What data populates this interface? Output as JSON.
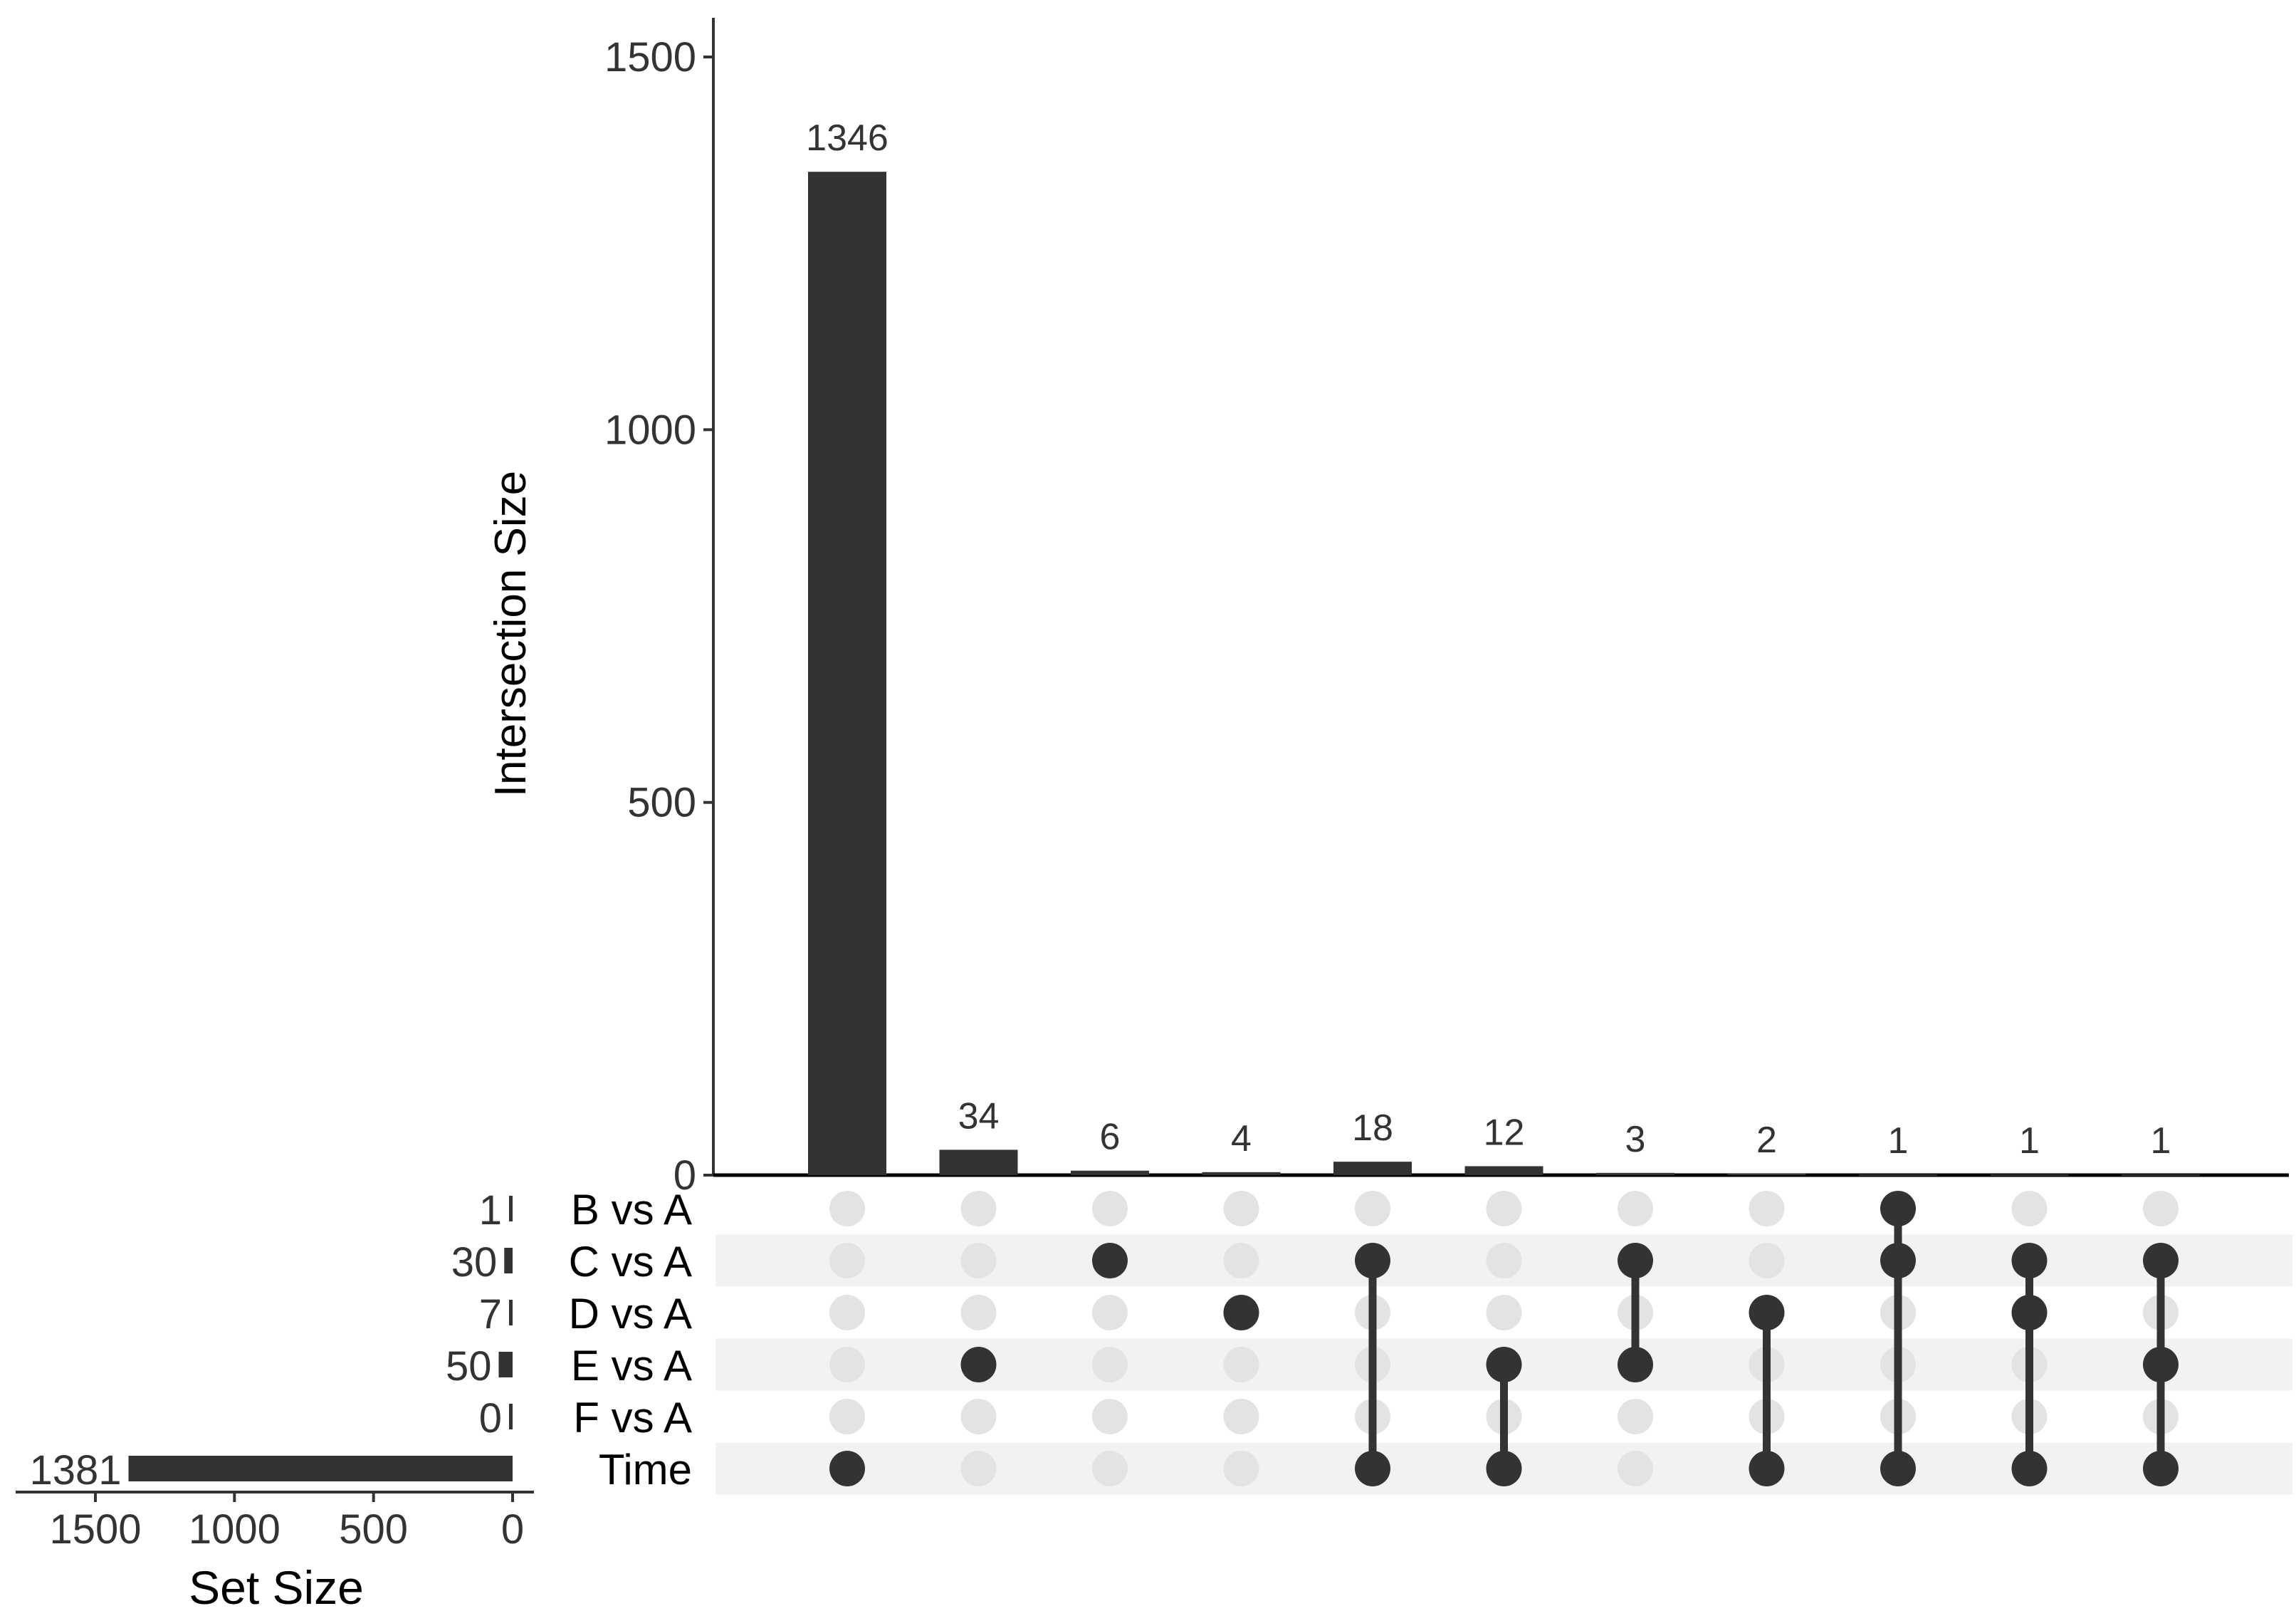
{
  "chart_data": {
    "type": "upset",
    "intersection_size": {
      "ylabel": "Intersection Size",
      "ylim": [
        0,
        1500
      ],
      "ticks": [
        0,
        500,
        1000,
        1500
      ],
      "values": [
        1346,
        34,
        6,
        4,
        18,
        12,
        3,
        2,
        1,
        1,
        1
      ]
    },
    "sets": {
      "names": [
        "B vs A",
        "C vs A",
        "D vs A",
        "E vs A",
        "F vs A",
        "Time"
      ],
      "sizes": [
        1,
        30,
        7,
        50,
        0,
        1381
      ],
      "size_labels": [
        "1",
        "30",
        "7",
        "50",
        "0",
        "1381"
      ],
      "xlabel": "Set Size",
      "xlim": [
        0,
        1500
      ],
      "ticks": [
        1500,
        1000,
        500,
        0
      ]
    },
    "membership": [
      [
        "Time"
      ],
      [
        "E vs A"
      ],
      [
        "C vs A"
      ],
      [
        "D vs A"
      ],
      [
        "C vs A",
        "Time"
      ],
      [
        "E vs A",
        "Time"
      ],
      [
        "C vs A",
        "E vs A"
      ],
      [
        "D vs A",
        "Time"
      ],
      [
        "B vs A",
        "C vs A",
        "Time"
      ],
      [
        "C vs A",
        "D vs A",
        "Time"
      ],
      [
        "C vs A",
        "E vs A",
        "Time"
      ]
    ],
    "colors": {
      "bar": "#333333",
      "dot_active": "#333333",
      "dot_inactive": "#e3e3e3",
      "row_stripe": "#f2f2f2"
    }
  }
}
